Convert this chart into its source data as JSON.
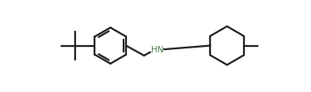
{
  "background_color": "#ffffff",
  "line_color": "#1a1a1a",
  "hn_color": "#4a7a4a",
  "line_width": 1.6,
  "figsize": [
    3.85,
    1.15
  ],
  "dpi": 100,
  "hn_text": "HN",
  "hn_fontsize": 7.5
}
